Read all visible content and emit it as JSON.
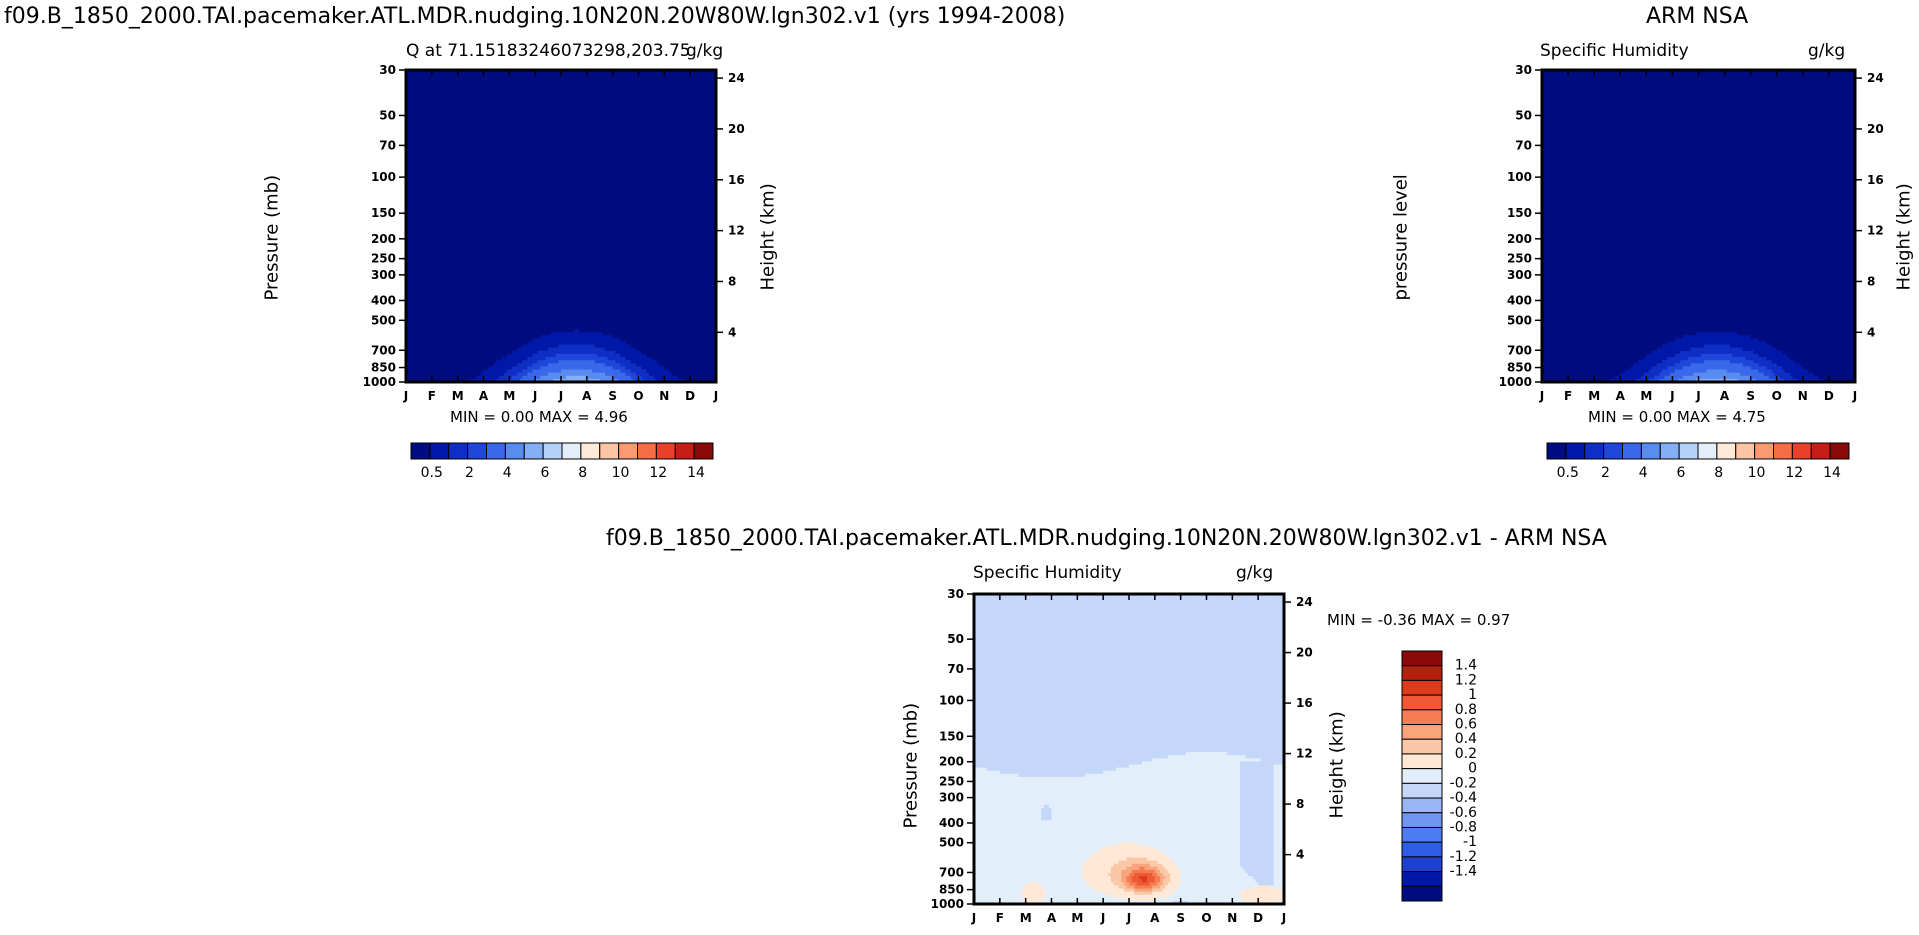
{
  "top_left_title": "f09.B_1850_2000.TAI.pacemaker.ATL.MDR.nudging.10N20N.20W80W.lgn302.v1 (yrs 1994-2008)",
  "top_right_title": "ARM NSA",
  "bottom_title": "f09.B_1850_2000.TAI.pacemaker.ATL.MDR.nudging.10N20N.20W80W.lgn302.v1 - ARM NSA",
  "colors": {
    "seq": [
      "#000c7f",
      "#0018a8",
      "#0f2fc4",
      "#1f47d9",
      "#3b68ea",
      "#5a8bf1",
      "#85aef5",
      "#b7d0f8",
      "#e4eefb",
      "#ffe9d9",
      "#fcc5a4",
      "#fa9a70",
      "#f46d45",
      "#e8402a",
      "#c41e16",
      "#8a0a0a"
    ],
    "diff": [
      "#000c7f",
      "#0018a8",
      "#1f3fd0",
      "#2f5de6",
      "#4d7cee",
      "#7196f1",
      "#9cb6f5",
      "#c5d7f8",
      "#e3eefb",
      "#ffe8d6",
      "#fbc8a7",
      "#f9a57c",
      "#f57d52",
      "#ef5a35",
      "#dc3b1c",
      "#b5200c",
      "#8a0a0a"
    ]
  },
  "axes": {
    "months": [
      "J",
      "F",
      "M",
      "A",
      "M",
      "J",
      "J",
      "A",
      "S",
      "O",
      "N",
      "D",
      "J"
    ],
    "pressure_ticks": [
      "30",
      "50",
      "70",
      "100",
      "150",
      "200",
      "250",
      "300",
      "400",
      "500",
      "700",
      "850",
      "1000"
    ],
    "height_ticks": [
      "24",
      "20",
      "16",
      "12",
      "8",
      "4"
    ],
    "pressure_label": "Pressure (mb)",
    "pressure_level_label": "pressure level",
    "height_label": "Height (km)"
  },
  "chart_data": [
    {
      "type": "heatmap",
      "title": "Q at 71.15183246073298,203.75",
      "unit": "g/kg",
      "minmax_text": "MIN =    0.00 MAX =    4.96",
      "min": 0.0,
      "max": 4.96,
      "colorbar_labels": [
        "0.5",
        "2",
        "4",
        "6",
        "8",
        "10",
        "12",
        "14"
      ]
    },
    {
      "type": "heatmap",
      "title": "Specific Humidity",
      "unit": "g/kg",
      "minmax_text": "MIN =    0.00 MAX =    4.75",
      "min": 0.0,
      "max": 4.75,
      "colorbar_labels": [
        "0.5",
        "2",
        "4",
        "6",
        "8",
        "10",
        "12",
        "14"
      ]
    },
    {
      "type": "heatmap",
      "title": "Specific Humidity",
      "unit": "g/kg",
      "minmax_text": "MIN =  -0.36 MAX =    0.97",
      "min": -0.36,
      "max": 0.97,
      "colorbar_labels": [
        "1.4",
        "1.2",
        "1",
        "0.8",
        "0.6",
        "0.4",
        "0.2",
        "0",
        "-0.2",
        "-0.4",
        "-0.6",
        "-0.8",
        "-1",
        "-1.2",
        "-1.4"
      ]
    }
  ]
}
